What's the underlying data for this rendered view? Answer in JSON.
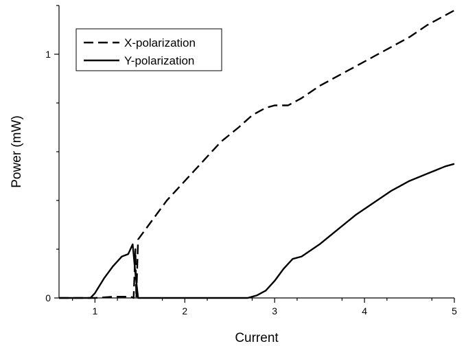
{
  "chart_data": {
    "type": "line",
    "title": "",
    "xlabel": "Current",
    "ylabel": "Power (mW)",
    "xlim": [
      0.6,
      5.0
    ],
    "ylim": [
      0,
      1.2
    ],
    "xticks": [
      "1",
      "2",
      "3",
      "4",
      "5"
    ],
    "yticks": [
      "0",
      "1"
    ],
    "grid": false,
    "legend_position": "top-left",
    "series": [
      {
        "name": "X-polarization",
        "line_style": "dashed",
        "color": "#000000",
        "x": [
          0.6,
          1.0,
          1.2,
          1.4,
          1.43,
          1.45,
          1.46,
          1.48,
          1.6,
          1.8,
          2.0,
          2.2,
          2.4,
          2.6,
          2.75,
          2.9,
          3.0,
          3.15,
          3.3,
          3.5,
          3.7,
          3.9,
          4.1,
          4.3,
          4.5,
          4.7,
          4.9,
          5.0
        ],
        "y": [
          0.0,
          0.0,
          0.005,
          0.005,
          0.0,
          0.2,
          0.0,
          0.24,
          0.3,
          0.4,
          0.48,
          0.56,
          0.64,
          0.7,
          0.75,
          0.78,
          0.79,
          0.79,
          0.82,
          0.87,
          0.91,
          0.95,
          0.99,
          1.03,
          1.07,
          1.12,
          1.16,
          1.18
        ]
      },
      {
        "name": "Y-polarization",
        "line_style": "solid",
        "color": "#000000",
        "x": [
          0.6,
          0.95,
          1.0,
          1.1,
          1.2,
          1.3,
          1.37,
          1.42,
          1.45,
          1.48,
          1.6,
          2.0,
          2.5,
          2.7,
          2.75,
          2.8,
          2.9,
          3.0,
          3.1,
          3.2,
          3.3,
          3.5,
          3.7,
          3.9,
          4.1,
          4.3,
          4.5,
          4.7,
          4.9,
          5.0
        ],
        "y": [
          0.0,
          0.0,
          0.02,
          0.08,
          0.13,
          0.17,
          0.18,
          0.22,
          0.1,
          0.0,
          0.0,
          0.0,
          0.0,
          0.0,
          0.005,
          0.01,
          0.03,
          0.07,
          0.12,
          0.16,
          0.17,
          0.22,
          0.28,
          0.34,
          0.39,
          0.44,
          0.48,
          0.51,
          0.54,
          0.55
        ]
      }
    ]
  }
}
